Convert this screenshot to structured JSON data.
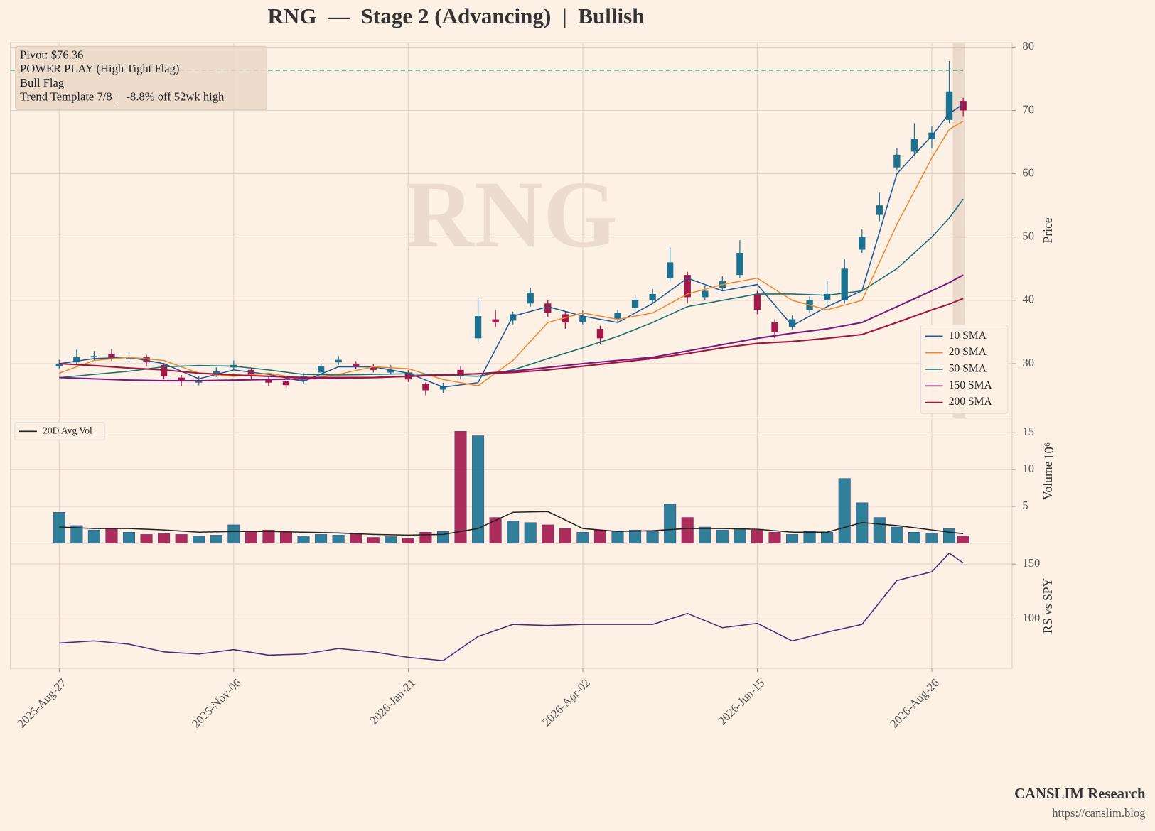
{
  "title": "RNG  —  Stage 2 (Advancing)  |  Bullish",
  "annotation": [
    "Pivot: $76.36",
    "POWER PLAY (High Tight Flag)",
    "Bull Flag",
    "Trend Template 7/8  |  -8.8% off 52wk high"
  ],
  "footer": {
    "brand": "CANSLIM Research",
    "url": "https://canslim.blog"
  },
  "chart_data": [
    {
      "type": "candlestick",
      "ylabel": "Price",
      "watermark": "RNG",
      "grid": true,
      "up_color": "#1b7390",
      "down_color": "#a3174a",
      "pivot": 76.36,
      "pivot_color": "#2e8b57",
      "highlight": [
        256,
        259.5
      ],
      "xlim": [
        -14,
        273
      ],
      "ylim": [
        21.4,
        80.7
      ],
      "yticks": [
        30,
        40,
        50,
        60,
        70,
        80
      ],
      "x": [
        0,
        5,
        10,
        15,
        20,
        25,
        30,
        35,
        40,
        45,
        50,
        55,
        60,
        65,
        70,
        75,
        80,
        85,
        90,
        95,
        100,
        105,
        110,
        115,
        120,
        125,
        130,
        135,
        140,
        145,
        150,
        155,
        160,
        165,
        170,
        175,
        180,
        185,
        190,
        195,
        200,
        205,
        210,
        215,
        220,
        225,
        230,
        235,
        240,
        245,
        250,
        255,
        259
      ],
      "open": [
        29.6,
        30.2,
        31.0,
        31.5,
        30.8,
        31.0,
        29.8,
        27.8,
        27.0,
        28.2,
        29.4,
        29.0,
        27.6,
        27.2,
        27.2,
        28.6,
        30.2,
        30.0,
        29.5,
        28.6,
        28.6,
        26.8,
        25.9,
        29.0,
        34.0,
        37.0,
        36.8,
        39.5,
        39.5,
        37.8,
        36.6,
        35.5,
        37.0,
        38.8,
        40.0,
        43.5,
        44.0,
        40.5,
        42.0,
        44.0,
        41.0,
        36.5,
        35.8,
        38.5,
        40.0,
        40.0,
        48.0,
        53.5,
        61.0,
        63.5,
        65.5,
        68.5,
        71.5
      ],
      "high": [
        30.6,
        32.2,
        32.0,
        32.3,
        31.8,
        31.4,
        30.1,
        28.2,
        28.0,
        29.4,
        30.5,
        29.3,
        28.1,
        27.5,
        28.5,
        30.1,
        31.2,
        30.4,
        29.9,
        29.8,
        29.0,
        27.0,
        27.0,
        29.6,
        40.3,
        38.5,
        38.2,
        42.0,
        40.0,
        38.2,
        38.4,
        36.0,
        38.5,
        40.8,
        41.8,
        48.3,
        44.5,
        42.3,
        43.8,
        49.5,
        41.5,
        37.0,
        37.6,
        40.6,
        43.0,
        46.5,
        51.2,
        57.0,
        64.0,
        68.0,
        67.5,
        77.8,
        72.0
      ],
      "low": [
        29.2,
        29.9,
        30.5,
        30.4,
        30.3,
        29.6,
        27.5,
        26.4,
        26.6,
        27.9,
        29.0,
        27.5,
        26.4,
        26.0,
        26.8,
        28.3,
        29.8,
        29.2,
        28.6,
        28.3,
        27.1,
        25.0,
        25.4,
        27.5,
        33.5,
        35.8,
        36.2,
        39.0,
        37.4,
        35.5,
        36.2,
        33.0,
        36.5,
        38.5,
        39.5,
        43.0,
        39.5,
        40.0,
        41.6,
        43.5,
        37.8,
        34.0,
        35.4,
        38.0,
        39.6,
        39.5,
        47.5,
        52.5,
        60.5,
        63.0,
        64.0,
        68.0,
        69.0
      ],
      "close": [
        30.0,
        31.0,
        31.2,
        30.8,
        31.0,
        30.2,
        28.0,
        27.2,
        27.4,
        28.8,
        29.8,
        28.0,
        27.0,
        26.6,
        28.0,
        29.6,
        30.6,
        29.6,
        29.0,
        29.0,
        27.5,
        25.8,
        26.5,
        28.0,
        37.5,
        36.5,
        37.8,
        41.2,
        38.0,
        36.5,
        37.5,
        34.0,
        38.0,
        40.0,
        41.0,
        46.0,
        40.5,
        41.5,
        43.0,
        47.5,
        38.5,
        35.0,
        37.0,
        40.0,
        41.0,
        45.0,
        50.0,
        55.0,
        63.0,
        65.5,
        66.5,
        73.0,
        70.0
      ],
      "legend": "lower right",
      "lines": {
        "x": [
          0,
          10,
          20,
          30,
          40,
          50,
          60,
          70,
          80,
          90,
          100,
          110,
          120,
          130,
          140,
          150,
          160,
          170,
          180,
          190,
          200,
          210,
          220,
          230,
          240,
          250,
          255,
          259
        ],
        "series": [
          {
            "name": "10 SMA",
            "color": "#1f5a96",
            "values": [
              30.0,
              30.8,
              31.0,
              30.0,
              27.6,
              29.0,
              28.3,
              27.2,
              29.5,
              29.5,
              28.5,
              26.3,
              27.0,
              37.5,
              39.0,
              37.5,
              36.5,
              39.5,
              43.5,
              41.5,
              42.5,
              36.0,
              39.0,
              41.5,
              60.0,
              66.0,
              69.5,
              71.0
            ]
          },
          {
            "name": "20 SMA",
            "color": "#f28a30",
            "values": [
              28.5,
              30.5,
              31.0,
              30.5,
              28.5,
              28.0,
              28.5,
              27.5,
              28.3,
              29.5,
              29.2,
              27.5,
              26.5,
              30.5,
              36.5,
              38.0,
              37.0,
              38.0,
              41.0,
              42.5,
              43.5,
              40.0,
              38.5,
              40.0,
              52.0,
              62.5,
              67.0,
              68.3
            ]
          },
          {
            "name": "50 SMA",
            "color": "#17706e",
            "values": [
              27.8,
              28.3,
              28.8,
              29.5,
              29.7,
              29.6,
              29.0,
              28.3,
              28.2,
              28.3,
              28.4,
              28.2,
              28.0,
              29.0,
              30.8,
              32.5,
              34.3,
              36.5,
              39.0,
              40.0,
              41.0,
              41.0,
              40.8,
              41.5,
              45.0,
              50.0,
              53.0,
              56.0
            ]
          },
          {
            "name": "150 SMA",
            "color": "#7b1a7e",
            "values": [
              27.8,
              27.6,
              27.4,
              27.3,
              27.3,
              27.4,
              27.5,
              27.6,
              27.7,
              27.8,
              28.0,
              28.2,
              28.4,
              28.8,
              29.4,
              30.0,
              30.5,
              31.0,
              32.0,
              33.0,
              34.0,
              34.8,
              35.5,
              36.5,
              39.0,
              41.5,
              42.8,
              44.0
            ]
          },
          {
            "name": "200 SMA",
            "color": "#a0163f",
            "values": [
              30.0,
              29.7,
              29.3,
              29.0,
              28.5,
              28.2,
              28.0,
              27.8,
              27.8,
              27.8,
              28.0,
              28.2,
              28.4,
              28.6,
              29.0,
              29.6,
              30.2,
              30.8,
              31.6,
              32.5,
              33.2,
              33.5,
              34.0,
              34.6,
              36.5,
              38.5,
              39.4,
              40.3
            ]
          }
        ]
      }
    },
    {
      "type": "bar",
      "ylabel": "Volume",
      "offset_label": "10⁶",
      "grid": true,
      "xlim": [
        -14,
        273
      ],
      "ylim": [
        0,
        17
      ],
      "yticks": [
        5,
        10,
        15
      ],
      "x": [
        0,
        5,
        10,
        15,
        20,
        25,
        30,
        35,
        40,
        45,
        50,
        55,
        60,
        65,
        70,
        75,
        80,
        85,
        90,
        95,
        100,
        105,
        110,
        115,
        120,
        125,
        130,
        135,
        140,
        145,
        150,
        155,
        160,
        165,
        170,
        175,
        180,
        185,
        190,
        195,
        200,
        205,
        210,
        215,
        220,
        225,
        230,
        235,
        240,
        245,
        250,
        255,
        259
      ],
      "values": [
        4.2,
        2.4,
        1.8,
        2.0,
        1.5,
        1.2,
        1.3,
        1.2,
        1.0,
        1.1,
        2.5,
        1.6,
        1.8,
        1.5,
        1.0,
        1.2,
        1.1,
        1.3,
        0.8,
        0.9,
        0.7,
        1.5,
        1.6,
        15.2,
        14.6,
        3.5,
        3.0,
        2.8,
        2.5,
        2.0,
        1.5,
        1.8,
        1.6,
        1.8,
        1.6,
        5.3,
        3.5,
        2.2,
        1.8,
        2.0,
        1.8,
        1.5,
        1.2,
        1.6,
        1.5,
        8.8,
        5.5,
        3.5,
        2.2,
        1.5,
        1.4,
        2.0,
        1.0
      ],
      "legend": "upper left",
      "lines": {
        "x": [
          0,
          10,
          20,
          30,
          40,
          50,
          60,
          70,
          80,
          90,
          100,
          110,
          120,
          130,
          140,
          150,
          160,
          170,
          180,
          190,
          200,
          210,
          220,
          230,
          240,
          250,
          255,
          259
        ],
        "series": [
          {
            "name": "20D Avg Vol",
            "color": "#222222",
            "values": [
              2.2,
              2.0,
              2.0,
              1.8,
              1.5,
              1.6,
              1.6,
              1.5,
              1.4,
              1.2,
              1.1,
              1.2,
              2.0,
              4.2,
              4.3,
              2.0,
              1.6,
              1.7,
              2.0,
              2.0,
              1.9,
              1.5,
              1.5,
              2.8,
              2.4,
              1.8,
              1.5,
              1.3
            ]
          }
        ]
      }
    },
    {
      "type": "line",
      "ylabel": "RS vs SPY",
      "grid": true,
      "xlim": [
        -14,
        273
      ],
      "ylim": [
        55,
        169
      ],
      "yticks": [
        100,
        150
      ],
      "xticks": [
        {
          "value": 0,
          "label": "2025-Aug-27"
        },
        {
          "value": 50,
          "label": "2025-Nov-06"
        },
        {
          "value": 100,
          "label": "2026-Jan-21"
        },
        {
          "value": 150,
          "label": "2026-Apr-02"
        },
        {
          "value": 200,
          "label": "2026-Jun-15"
        },
        {
          "value": 250,
          "label": "2026-Aug-26"
        }
      ],
      "lines": {
        "x": [
          0,
          10,
          20,
          30,
          40,
          50,
          60,
          70,
          80,
          90,
          100,
          110,
          120,
          130,
          140,
          150,
          160,
          170,
          180,
          190,
          200,
          210,
          220,
          230,
          240,
          250,
          255,
          259
        ],
        "series": [
          {
            "color": "#4b2a78",
            "values": [
              78,
              80,
              77,
              70,
              68,
              72,
              67,
              68,
              73,
              70,
              65,
              62,
              84,
              95,
              94,
              95,
              95,
              95,
              105,
              92,
              96,
              80,
              88,
              95,
              135,
              143,
              160,
              151
            ]
          }
        ]
      }
    }
  ]
}
